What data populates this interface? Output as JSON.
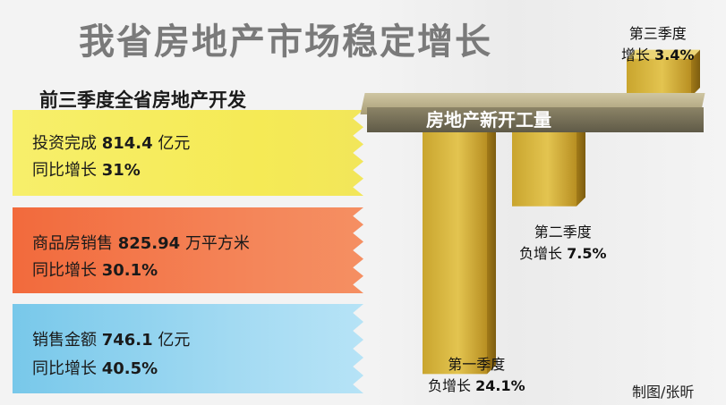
{
  "title": "我省房地产市场稳定增长",
  "subtitle": "前三季度全省房地产开发",
  "stats": [
    {
      "label": "投资完成",
      "value": "814.4",
      "unit": "亿元",
      "growth_label": "同比增长",
      "growth": "31%",
      "color": "#f5ea55"
    },
    {
      "label": "商品房销售",
      "value": "825.94",
      "unit": "万平方米",
      "growth_label": "同比增长",
      "growth": "30.1%",
      "color": "#f4865a"
    },
    {
      "label": "销售金额",
      "value": "746.1",
      "unit": "亿元",
      "growth_label": "同比增长",
      "growth": "40.5%",
      "color": "#a7dcf3"
    }
  ],
  "credit": "制图/张昕",
  "chart_data": {
    "type": "bar",
    "title": "房地产新开工量",
    "categories": [
      "第一季度",
      "第二季度",
      "第三季度"
    ],
    "values": [
      -24.1,
      -7.5,
      3.4
    ],
    "bar_labels": [
      {
        "line1": "第一季度",
        "line2_prefix": "负增长",
        "line2_value": "24.1%"
      },
      {
        "line1": "第二季度",
        "line2_prefix": "负增长",
        "line2_value": "7.5%"
      },
      {
        "line1": "第三季度",
        "line2_prefix": "增长",
        "line2_value": "3.4%"
      }
    ],
    "bar_color": "#d9b63a"
  }
}
